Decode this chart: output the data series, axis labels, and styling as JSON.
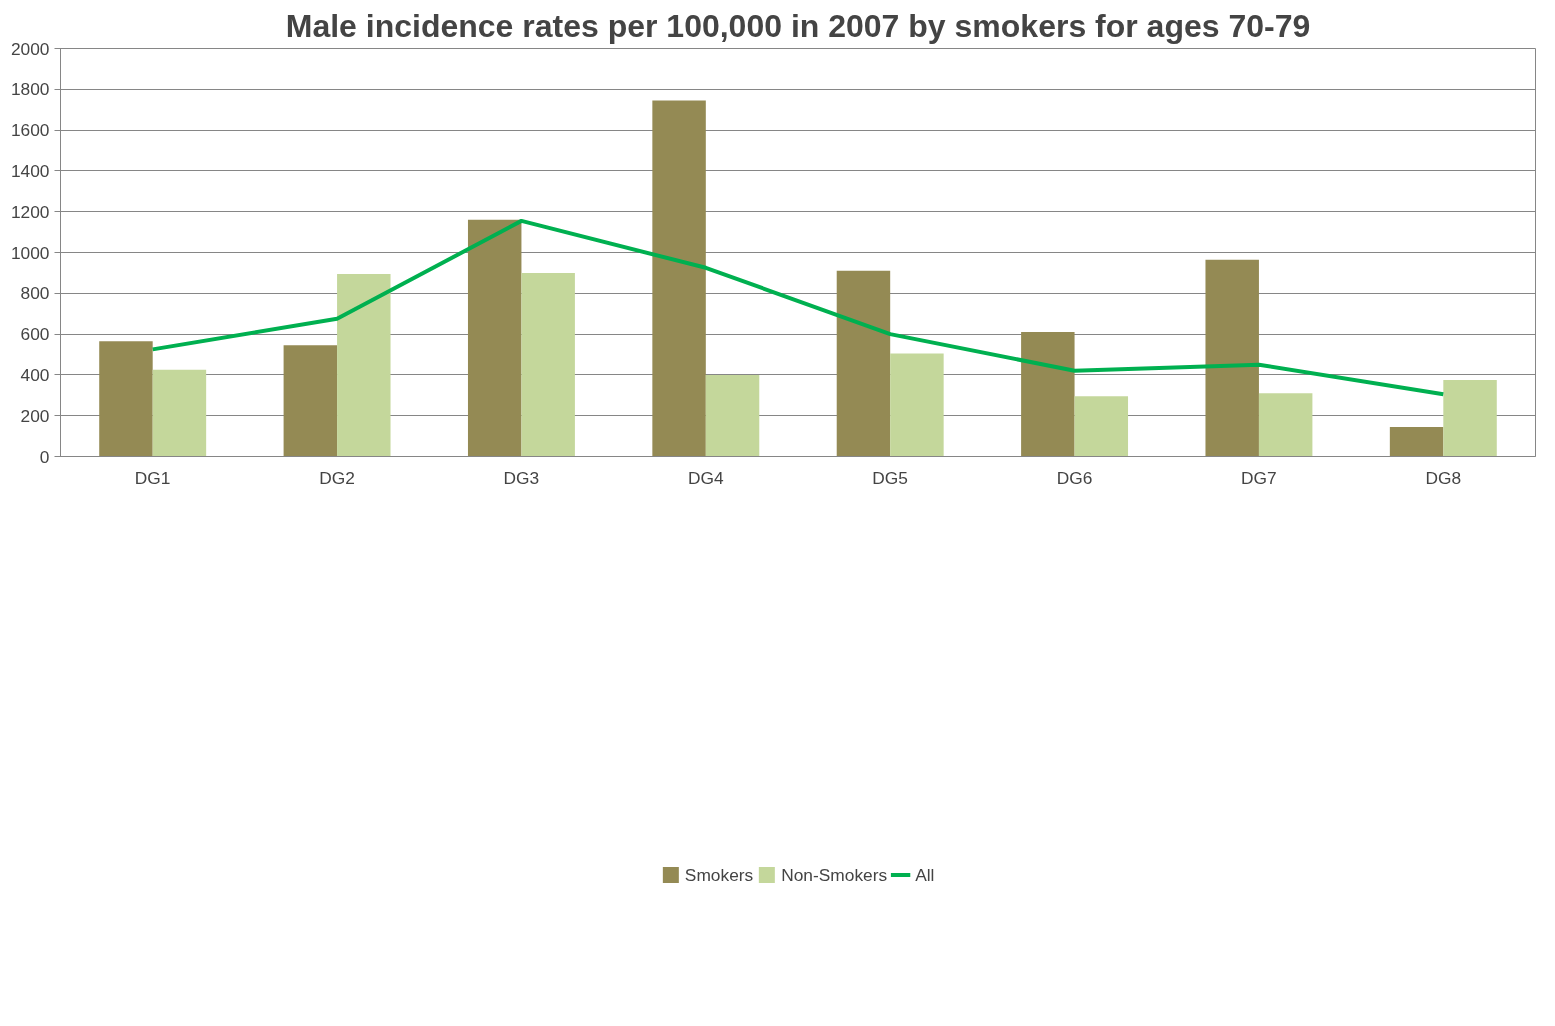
{
  "chart_data": {
    "type": "bar",
    "title": "Male incidence rates per 100,000 in 2007 by smokers for ages 70-79",
    "categories": [
      "DG1",
      "DG2",
      "DG3",
      "DG4",
      "DG5",
      "DG6",
      "DG7",
      "DG8"
    ],
    "series": [
      {
        "name": "Smokers",
        "color": "#948a54",
        "values": [
          565,
          545,
          1160,
          1745,
          910,
          610,
          965,
          145
        ]
      },
      {
        "name": "Non-Smokers",
        "color": "#c4d79b",
        "values": [
          425,
          895,
          900,
          400,
          505,
          295,
          310,
          375
        ]
      },
      {
        "name": "All",
        "type": "line",
        "color": "#00b050",
        "values": [
          525,
          675,
          1155,
          925,
          600,
          420,
          450,
          305
        ]
      }
    ],
    "ylim": [
      0,
      2000
    ],
    "yticks": [
      0,
      200,
      400,
      600,
      800,
      1000,
      1200,
      1400,
      1600,
      1800,
      2000
    ],
    "grid": "y",
    "legend": "bottom",
    "marker": "none",
    "line_style": "solid"
  }
}
